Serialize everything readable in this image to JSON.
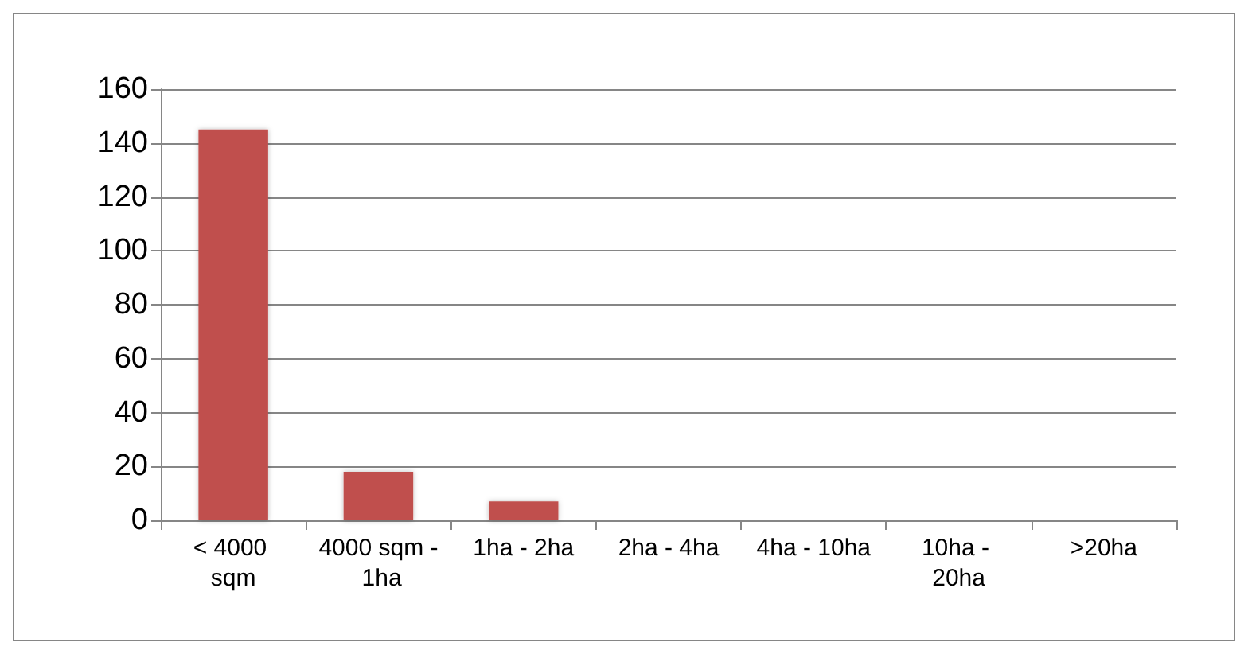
{
  "chart_data": {
    "type": "bar",
    "categories": [
      "< 4000 sqm",
      "4000 sqm - 1ha",
      "1ha - 2ha",
      "2ha - 4ha",
      "4ha - 10ha",
      "10ha - 20ha",
      ">20ha"
    ],
    "values": [
      145,
      18,
      7,
      0,
      0,
      0,
      0
    ],
    "color": "#c0504d",
    "ylim": [
      0,
      160
    ],
    "yticks": [
      0,
      20,
      40,
      60,
      80,
      100,
      120,
      140,
      160
    ],
    "grid": "y"
  }
}
